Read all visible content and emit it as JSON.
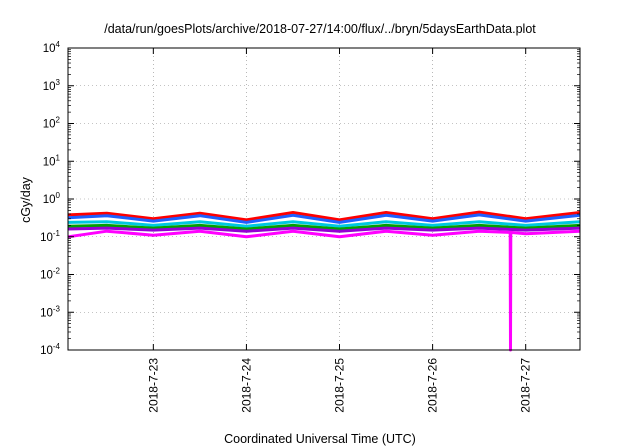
{
  "chart_data": {
    "type": "line",
    "title": "/data/run/goesPlots/archive/2018-07-27/14:00/flux/../bryn/5daysEarthData.plot",
    "xlabel": "Coordinated Universal Time (UTC)",
    "ylabel": "cGy/day",
    "yscale": "log",
    "ylim": [
      0.0001,
      10000
    ],
    "yticks": [
      {
        "value": 0.0001,
        "base": "10",
        "exp": "-4"
      },
      {
        "value": 0.001,
        "base": "10",
        "exp": "-3"
      },
      {
        "value": 0.01,
        "base": "10",
        "exp": "-2"
      },
      {
        "value": 0.1,
        "base": "10",
        "exp": "-1"
      },
      {
        "value": 1,
        "base": "10",
        "exp": "0"
      },
      {
        "value": 10,
        "base": "10",
        "exp": "1"
      },
      {
        "value": 100,
        "base": "10",
        "exp": "2"
      },
      {
        "value": 1000,
        "base": "10",
        "exp": "3"
      },
      {
        "value": 10000,
        "base": "10",
        "exp": "4"
      }
    ],
    "xlim": [
      "2018-07-22 02:00",
      "2018-07-27 14:00"
    ],
    "xticks": [
      "2018-7-23",
      "2018-7-24",
      "2018-7-25",
      "2018-7-26",
      "2018-7-27"
    ],
    "grid": true,
    "series": [
      {
        "color": "#ff0000",
        "x": [
          "2018-07-22 02:00",
          "2018-07-22 12:00",
          "2018-07-23 00:00",
          "2018-07-23 12:00",
          "2018-07-24 00:00",
          "2018-07-24 12:00",
          "2018-07-25 00:00",
          "2018-07-25 12:00",
          "2018-07-26 00:00",
          "2018-07-26 12:00",
          "2018-07-27 00:00",
          "2018-07-27 14:00"
        ],
        "values": [
          0.38,
          0.42,
          0.3,
          0.42,
          0.28,
          0.44,
          0.28,
          0.44,
          0.3,
          0.45,
          0.3,
          0.44
        ]
      },
      {
        "color": "#1f5fff",
        "x": [
          "2018-07-22 02:00",
          "2018-07-22 12:00",
          "2018-07-23 00:00",
          "2018-07-23 12:00",
          "2018-07-24 00:00",
          "2018-07-24 12:00",
          "2018-07-25 00:00",
          "2018-07-25 12:00",
          "2018-07-26 00:00",
          "2018-07-26 12:00",
          "2018-07-27 00:00",
          "2018-07-27 14:00"
        ],
        "values": [
          0.32,
          0.36,
          0.26,
          0.36,
          0.24,
          0.37,
          0.24,
          0.37,
          0.26,
          0.38,
          0.26,
          0.37
        ]
      },
      {
        "color": "#00c8e0",
        "x": [
          "2018-07-22 02:00",
          "2018-07-22 12:00",
          "2018-07-23 00:00",
          "2018-07-23 12:00",
          "2018-07-24 00:00",
          "2018-07-24 12:00",
          "2018-07-25 00:00",
          "2018-07-25 12:00",
          "2018-07-26 00:00",
          "2018-07-26 12:00",
          "2018-07-27 00:00",
          "2018-07-27 14:00"
        ],
        "values": [
          0.24,
          0.25,
          0.2,
          0.25,
          0.19,
          0.25,
          0.19,
          0.25,
          0.2,
          0.25,
          0.2,
          0.25
        ]
      },
      {
        "color": "#00a000",
        "x": [
          "2018-07-22 02:00",
          "2018-07-22 12:00",
          "2018-07-23 00:00",
          "2018-07-23 12:00",
          "2018-07-24 00:00",
          "2018-07-24 12:00",
          "2018-07-25 00:00",
          "2018-07-25 12:00",
          "2018-07-26 00:00",
          "2018-07-26 12:00",
          "2018-07-27 00:00",
          "2018-07-27 14:00"
        ],
        "values": [
          0.19,
          0.2,
          0.17,
          0.2,
          0.16,
          0.2,
          0.16,
          0.2,
          0.17,
          0.2,
          0.17,
          0.2
        ]
      },
      {
        "color": "#9400d3",
        "x": [
          "2018-07-22 02:00",
          "2018-07-22 12:00",
          "2018-07-23 00:00",
          "2018-07-23 12:00",
          "2018-07-24 00:00",
          "2018-07-24 12:00",
          "2018-07-25 00:00",
          "2018-07-25 12:00",
          "2018-07-26 00:00",
          "2018-07-26 12:00",
          "2018-07-27 00:00",
          "2018-07-27 14:00"
        ],
        "values": [
          0.16,
          0.17,
          0.15,
          0.17,
          0.14,
          0.17,
          0.14,
          0.17,
          0.15,
          0.17,
          0.15,
          0.17
        ]
      },
      {
        "color": "#ff00ff",
        "x": [
          "2018-07-22 02:00",
          "2018-07-22 12:00",
          "2018-07-23 00:00",
          "2018-07-23 12:00",
          "2018-07-24 00:00",
          "2018-07-24 12:00",
          "2018-07-25 00:00",
          "2018-07-25 12:00",
          "2018-07-26 00:00",
          "2018-07-26 12:00",
          "2018-07-26 20:00",
          "2018-07-26 20:05",
          "2018-07-26 20:10",
          "2018-07-27 00:00",
          "2018-07-27 14:00"
        ],
        "values": [
          0.1,
          0.14,
          0.11,
          0.14,
          0.1,
          0.14,
          0.1,
          0.14,
          0.11,
          0.14,
          0.13,
          0.0001,
          0.13,
          0.12,
          0.14
        ]
      }
    ]
  }
}
